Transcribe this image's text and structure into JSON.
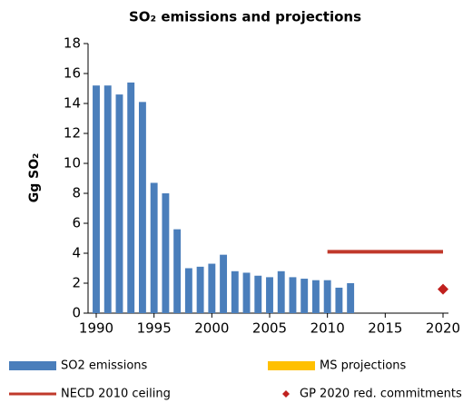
{
  "chart_data": {
    "type": "bar",
    "title": "SO₂ emissions and projections",
    "y_label": "Gg SO₂",
    "xlim": [
      1990,
      2020
    ],
    "xticks": [
      1990,
      1995,
      2000,
      2005,
      2010,
      2015,
      2020
    ],
    "ylim": [
      0,
      18
    ],
    "yticks": [
      0,
      2,
      4,
      6,
      8,
      10,
      12,
      14,
      16,
      18
    ],
    "grid": false,
    "series": [
      {
        "name": "SO2 emissions",
        "type": "bar",
        "color": "#4a7ebb",
        "x": [
          1990,
          1991,
          1992,
          1993,
          1994,
          1995,
          1996,
          1997,
          1998,
          1999,
          2000,
          2001,
          2002,
          2003,
          2004,
          2005,
          2006,
          2007,
          2008,
          2009,
          2010,
          2011,
          2012
        ],
        "values": [
          15.2,
          15.2,
          14.6,
          15.4,
          14.1,
          8.7,
          8.0,
          5.6,
          3.0,
          3.1,
          3.3,
          3.9,
          2.8,
          2.7,
          2.5,
          2.4,
          2.8,
          2.4,
          2.3,
          2.2,
          2.2,
          1.7,
          2.0
        ]
      },
      {
        "name": "MS projections",
        "type": "bar",
        "color": "#ffc000",
        "x": [],
        "values": []
      },
      {
        "name": "NECD 2010 ceiling",
        "type": "line",
        "color": "#c0392b",
        "x": [
          2010,
          2020
        ],
        "values": [
          4.1,
          4.1
        ]
      },
      {
        "name": "GP 2020 red. commitments",
        "type": "scatter",
        "color": "#c0201e",
        "x": [
          2020
        ],
        "values": [
          1.6
        ]
      }
    ]
  }
}
